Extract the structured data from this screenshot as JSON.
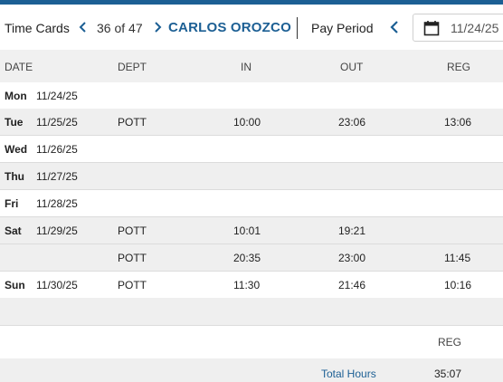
{
  "header": {
    "title": "Time Cards",
    "counter": "36 of 47",
    "employee": "CARLOS OROZCO",
    "pay_period_label": "Pay Period",
    "date_value": "11/24/25",
    "accent": "#1c5f94"
  },
  "columns": {
    "date": "DATE",
    "dept": "DEPT",
    "in": "IN",
    "out": "OUT",
    "reg": "REG"
  },
  "rows": [
    {
      "day": "Mon",
      "date": "11/24/25",
      "dept": "",
      "in": "",
      "out": "",
      "reg": ""
    },
    {
      "day": "Tue",
      "date": "11/25/25",
      "dept": "POTT",
      "in": "10:00",
      "out": "23:06",
      "reg": "13:06"
    },
    {
      "day": "Wed",
      "date": "11/26/25",
      "dept": "",
      "in": "",
      "out": "",
      "reg": ""
    },
    {
      "day": "Thu",
      "date": "11/27/25",
      "dept": "",
      "in": "",
      "out": "",
      "reg": ""
    },
    {
      "day": "Fri",
      "date": "11/28/25",
      "dept": "",
      "in": "",
      "out": "",
      "reg": ""
    },
    {
      "day": "Sat",
      "date": "11/29/25",
      "dept": "POTT",
      "in": "10:01",
      "out": "19:21",
      "reg": ""
    },
    {
      "day": "",
      "date": "",
      "dept": "POTT",
      "in": "20:35",
      "out": "23:00",
      "reg": "11:45"
    },
    {
      "day": "Sun",
      "date": "11/30/25",
      "dept": "POTT",
      "in": "11:30",
      "out": "21:46",
      "reg": "10:16"
    }
  ],
  "summary": {
    "reg_label": "REG",
    "total_label": "Total Hours",
    "total_value": "35:07"
  },
  "icons": {
    "prev": "chevron-left-icon",
    "next": "chevron-right-icon",
    "calendar": "calendar-icon"
  }
}
